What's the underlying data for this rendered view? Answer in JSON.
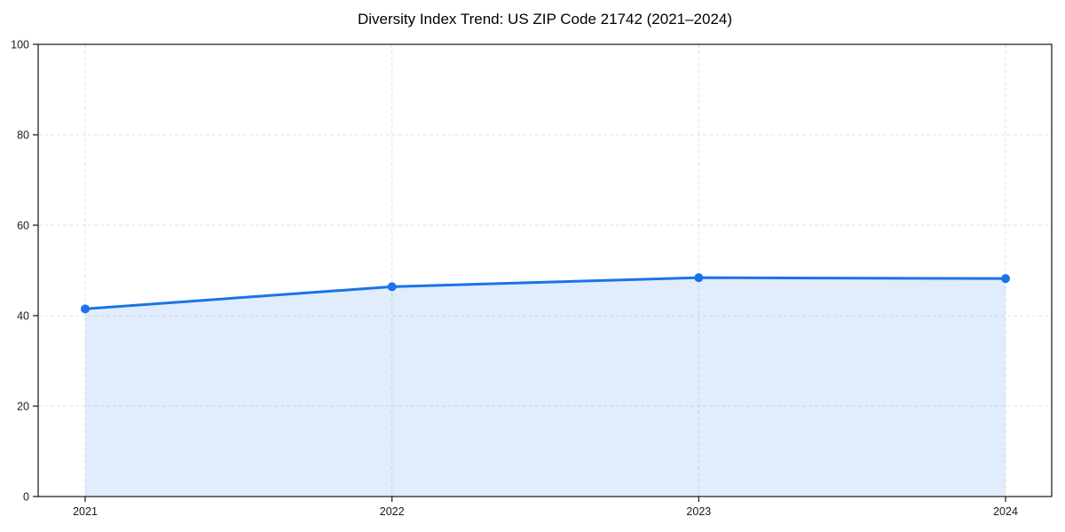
{
  "page": {
    "title": "Diversity Index Trend: US ZIP Code 21742 (2021–2024)"
  },
  "chart_data": {
    "type": "area",
    "title": "Diversity Index Trend: US ZIP Code 21742 (2021–2024)",
    "categories": [
      "2021",
      "2022",
      "2023",
      "2024"
    ],
    "series": [
      {
        "name": "Diversity Index",
        "values": [
          41.5,
          46.4,
          48.4,
          48.2
        ]
      }
    ],
    "xlabel": "",
    "ylabel": "",
    "ylim": [
      0,
      100
    ],
    "yticks": [
      0,
      20,
      40,
      60,
      80,
      100
    ],
    "grid": true,
    "grid_style": "dashed",
    "legend_position": "none",
    "marker": "circle",
    "colors": {
      "line": "#1a73e8",
      "marker": "#1a73e8",
      "fill": "#1a73e8",
      "fill_opacity": 0.13,
      "grid": "#e0e0e0",
      "spine": "#262626",
      "tick_text": "#1a1a1a",
      "title_text": "#000000",
      "background": "#ffffff"
    }
  }
}
